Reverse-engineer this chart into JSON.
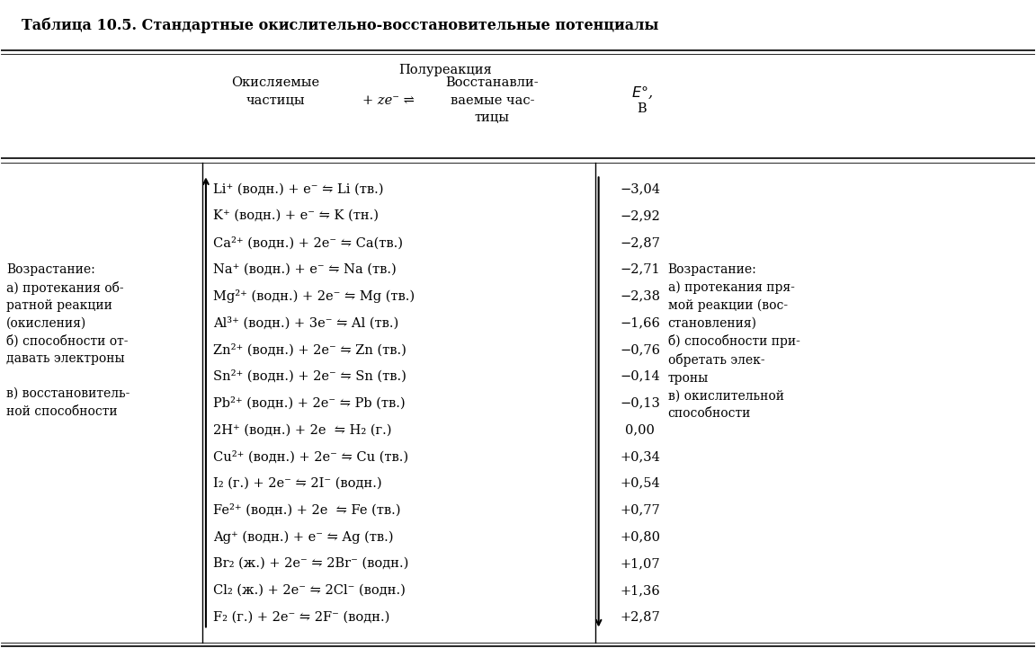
{
  "title": "Таблица 10.5. Стандартные окислительно-восстановительные потенциалы",
  "header_line1": "Полуреакция",
  "header_col1": "Окисляемые\nчастицы",
  "header_mid": "+ ze⁻ ⇌",
  "header_col2": "Восстанавли-\nваемые час-\nтицы",
  "header_col3": "E°,\nВ",
  "reactions": [
    [
      "Li⁺ (водн.) + e⁻ ⇋ Li (тв.)",
      "−3,04"
    ],
    [
      "K⁺ (водн.) + e⁻ ⇋ K (тн.)",
      "−2,92"
    ],
    [
      "Ca²⁺ (водн.) + 2e⁻ ⇋ Ca(тв.)",
      "−2,87"
    ],
    [
      "Na⁺ (водн.) + e⁻ ⇋ Na (тв.)",
      "−2,71"
    ],
    [
      "Mg²⁺ (водн.) + 2e⁻ ⇋ Mg (тв.)",
      "−2,38"
    ],
    [
      "Al³⁺ (водн.) + 3e⁻ ⇋ Al (тв.)",
      "−1,66"
    ],
    [
      "Zn²⁺ (водн.) + 2e⁻ ⇋ Zn (тв.)",
      "−0,76"
    ],
    [
      "Sn²⁺ (водн.) + 2e⁻ ⇋ Sn (тв.)",
      "−0,14"
    ],
    [
      "Pb²⁺ (водн.) + 2e⁻ ⇋ Pb (тв.)",
      "−0,13"
    ],
    [
      "2H⁺ (водн.) + 2e  ⇋ H₂ (г.)",
      "0,00"
    ],
    [
      "Cu²⁺ (водн.) + 2e⁻ ⇋ Cu (тв.)",
      "+0,34"
    ],
    [
      "I₂ (г.) + 2e⁻ ⇋ 2I⁻ (водн.)",
      "+0,54"
    ],
    [
      "Fe²⁺ (водн.) + 2e  ⇋ Fe (тв.)",
      "+0,77"
    ],
    [
      "Ag⁺ (водн.) + e⁻ ⇋ Ag (тв.)",
      "+0,80"
    ],
    [
      "Br₂ (ж.) + 2e⁻ ⇋ 2Br⁻ (водн.)",
      "+1,07"
    ],
    [
      "Cl₂ (ж.) + 2e⁻ ⇋ 2Cl⁻ (водн.)",
      "+1,36"
    ],
    [
      "F₂ (г.) + 2e⁻ ⇋ 2F⁻ (водн.)",
      "+2,87"
    ]
  ],
  "left_text": "Возрастание:\nа) протекания об-\nратной реакции\n(окисления)\nб) способности от-\nдавать электроны\n\nв) восстановитель-\nной способности",
  "right_text": "Возрастание:\nа) протекания пря-\nмой реакции (вос-\nстановления)\nб) способности при-\nобретать элек-\nтроны\nв) окислительной\nспособности",
  "bg_color": "#ffffff",
  "text_color": "#000000",
  "font_size": 10.5,
  "title_font_size": 11.5
}
